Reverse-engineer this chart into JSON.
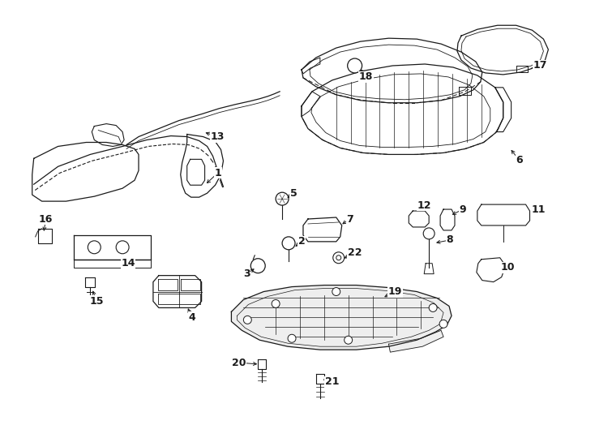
{
  "background_color": "#ffffff",
  "line_color": "#1a1a1a",
  "figsize": [
    7.34,
    5.4
  ],
  "dpi": 100
}
